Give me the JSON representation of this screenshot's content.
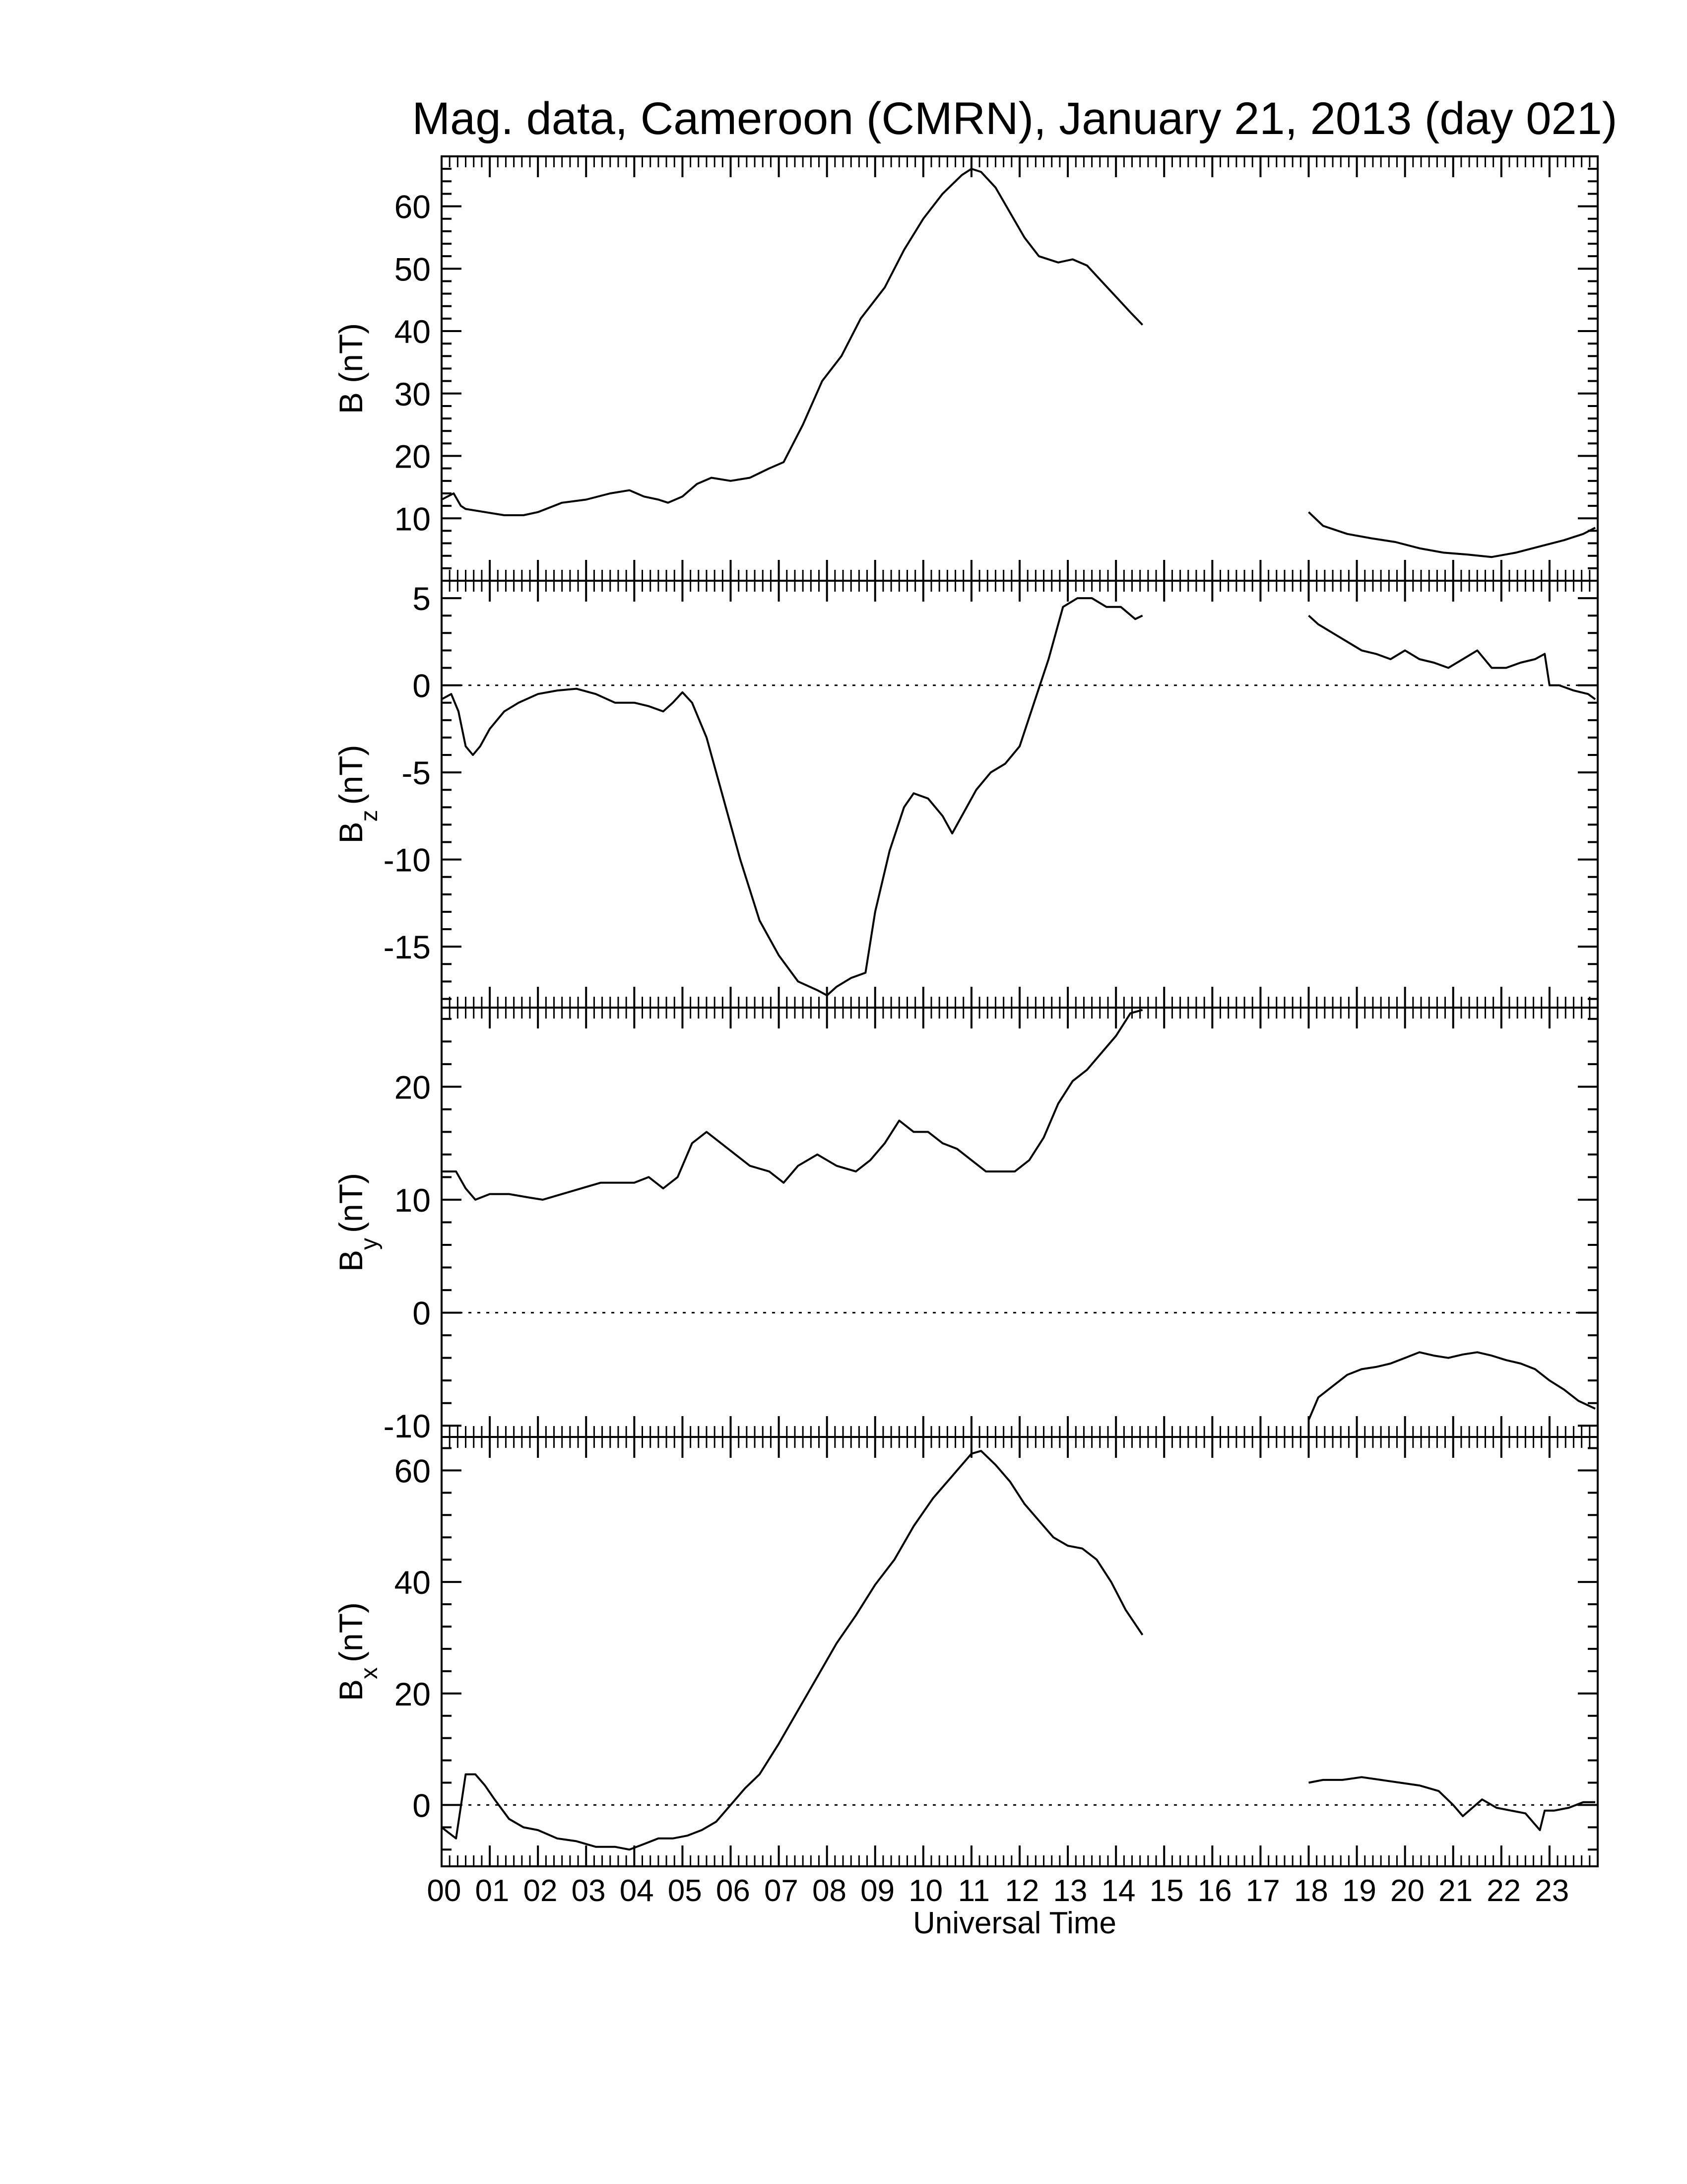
{
  "figure": {
    "title": "Mag. data, Cameroon (CMRN), January 21, 2013 (day 021)",
    "xlabel": "Universal Time"
  },
  "chart_data": [
    {
      "type": "line",
      "panel": "B",
      "ylabel": "B (nT)",
      "ylabel_sub": "",
      "ylim": [
        0,
        68
      ],
      "yticks": [
        10,
        20,
        30,
        40,
        50,
        60
      ],
      "ytick_labels": [
        "10",
        "20",
        "30",
        "40",
        "50",
        "60"
      ],
      "zero_line": false,
      "segments": [
        {
          "x": [
            0,
            0.25,
            0.4,
            0.5,
            0.9,
            1.3,
            1.7,
            2.0,
            2.5,
            3.0,
            3.5,
            3.9,
            4.2,
            4.5,
            4.7,
            5.0,
            5.3,
            5.6,
            6.0,
            6.4,
            6.8,
            7.1,
            7.5,
            7.9,
            8.3,
            8.7,
            9.2,
            9.6,
            10.0,
            10.4,
            10.8,
            11.0,
            11.2,
            11.5,
            11.8,
            12.1,
            12.4,
            12.8,
            13.1,
            13.4,
            13.7,
            14.0,
            14.3,
            14.55
          ],
          "y": [
            13,
            14,
            12,
            11.5,
            11,
            10.5,
            10.5,
            11,
            12.5,
            13,
            14,
            14.5,
            13.5,
            13,
            12.5,
            13.5,
            15.5,
            16.5,
            16,
            16.5,
            18,
            19,
            25,
            32,
            36,
            42,
            47,
            53,
            58,
            62,
            65,
            66,
            65.5,
            63,
            59,
            55,
            52,
            51,
            51.5,
            50.5,
            48,
            45.5,
            43,
            41
          ]
        },
        {
          "x": [
            18.0,
            18.3,
            18.8,
            19.3,
            19.8,
            20.3,
            20.8,
            21.3,
            21.8,
            22.3,
            22.8,
            23.3,
            23.7,
            23.95
          ],
          "y": [
            11,
            8.8,
            7.5,
            6.8,
            6.2,
            5.2,
            4.5,
            4.2,
            3.8,
            4.5,
            5.5,
            6.5,
            7.5,
            8.5
          ]
        }
      ]
    },
    {
      "type": "line",
      "panel": "Bz",
      "ylabel": "B",
      "ylabel_sub": "z",
      "ylabel_unit": "(nT)",
      "ylim": [
        -18.5,
        6
      ],
      "yticks": [
        5,
        0,
        -5,
        -10,
        -15
      ],
      "ytick_labels": [
        "5",
        "0",
        "-5",
        "-10",
        "-15"
      ],
      "zero_line": true,
      "segments": [
        {
          "x": [
            0,
            0.2,
            0.35,
            0.5,
            0.65,
            0.8,
            1.0,
            1.3,
            1.6,
            2.0,
            2.4,
            2.8,
            3.2,
            3.6,
            4.0,
            4.3,
            4.6,
            4.8,
            5.0,
            5.2,
            5.5,
            5.8,
            6.2,
            6.6,
            7.0,
            7.4,
            7.8,
            8.0,
            8.2,
            8.5,
            8.8,
            9.0,
            9.3,
            9.6,
            9.8,
            10.1,
            10.4,
            10.6,
            10.8,
            11.1,
            11.4,
            11.7,
            12.0,
            12.3,
            12.6,
            12.9,
            13.2,
            13.5,
            13.8,
            14.1,
            14.4,
            14.55
          ],
          "y": [
            -0.8,
            -0.5,
            -1.5,
            -3.5,
            -4,
            -3.5,
            -2.5,
            -1.5,
            -1,
            -0.5,
            -0.3,
            -0.2,
            -0.5,
            -1,
            -1,
            -1.2,
            -1.5,
            -1,
            -0.4,
            -1,
            -3,
            -6,
            -10,
            -13.5,
            -15.5,
            -17,
            -17.5,
            -17.8,
            -17.3,
            -16.8,
            -16.5,
            -13,
            -9.5,
            -7,
            -6.2,
            -6.5,
            -7.5,
            -8.5,
            -7.5,
            -6,
            -5,
            -4.5,
            -3.5,
            -1,
            1.5,
            4.5,
            5,
            5,
            4.5,
            4.5,
            3.8,
            4
          ]
        },
        {
          "x": [
            18.0,
            18.2,
            18.5,
            18.8,
            19.1,
            19.4,
            19.7,
            20.0,
            20.3,
            20.6,
            20.9,
            21.2,
            21.5,
            21.8,
            22.1,
            22.4,
            22.7,
            22.9,
            23.0,
            23.2,
            23.5,
            23.8,
            23.95
          ],
          "y": [
            4,
            3.5,
            3,
            2.5,
            2,
            1.8,
            1.5,
            2,
            1.5,
            1.3,
            1,
            1.5,
            2,
            1,
            1,
            1.3,
            1.5,
            1.8,
            0,
            0,
            -0.3,
            -0.5,
            -0.8
          ]
        }
      ]
    },
    {
      "type": "line",
      "panel": "By",
      "ylabel": "B",
      "ylabel_sub": "y",
      "ylabel_unit": "(nT)",
      "ylim": [
        -11,
        27
      ],
      "yticks": [
        20,
        10,
        0,
        -10
      ],
      "ytick_labels": [
        "20",
        "10",
        "0",
        "-10"
      ],
      "zero_line": true,
      "segments": [
        {
          "x": [
            0,
            0.3,
            0.5,
            0.7,
            1.0,
            1.4,
            1.8,
            2.1,
            2.5,
            2.9,
            3.3,
            3.7,
            4.0,
            4.3,
            4.6,
            4.9,
            5.2,
            5.5,
            5.8,
            6.1,
            6.4,
            6.8,
            7.1,
            7.4,
            7.8,
            8.2,
            8.6,
            8.9,
            9.2,
            9.5,
            9.8,
            10.1,
            10.4,
            10.7,
            11.0,
            11.3,
            11.6,
            11.9,
            12.2,
            12.5,
            12.8,
            13.1,
            13.4,
            13.7,
            14.0,
            14.3,
            14.55
          ],
          "y": [
            12.5,
            12.5,
            11,
            10,
            10.5,
            10.5,
            10.2,
            10,
            10.5,
            11,
            11.5,
            11.5,
            11.5,
            12,
            11,
            12,
            15,
            16,
            15,
            14,
            13,
            12.5,
            11.5,
            13,
            14,
            13,
            12.5,
            13.5,
            15,
            17,
            16,
            16,
            15,
            14.5,
            13.5,
            12.5,
            12.5,
            12.5,
            13.5,
            15.5,
            18.5,
            20.5,
            21.5,
            23,
            24.5,
            26.5,
            26.8
          ]
        },
        {
          "x": [
            18.0,
            18.2,
            18.5,
            18.8,
            19.1,
            19.4,
            19.7,
            20.0,
            20.3,
            20.6,
            20.9,
            21.2,
            21.5,
            21.8,
            22.1,
            22.4,
            22.7,
            23.0,
            23.3,
            23.6,
            23.95
          ],
          "y": [
            -9.5,
            -7.5,
            -6.5,
            -5.5,
            -5,
            -4.8,
            -4.5,
            -4,
            -3.5,
            -3.8,
            -4,
            -3.7,
            -3.5,
            -3.8,
            -4.2,
            -4.5,
            -5,
            -6,
            -6.8,
            -7.8,
            -8.5
          ]
        }
      ]
    },
    {
      "type": "line",
      "panel": "Bx",
      "ylabel": "B",
      "ylabel_sub": "x",
      "ylabel_unit": "(nT)",
      "ylim": [
        -11,
        66
      ],
      "yticks": [
        60,
        40,
        20,
        0
      ],
      "ytick_labels": [
        "60",
        "40",
        "20",
        "0"
      ],
      "zero_line": true,
      "segments": [
        {
          "x": [
            0,
            0.3,
            0.5,
            0.7,
            0.9,
            1.1,
            1.4,
            1.7,
            2.0,
            2.4,
            2.8,
            3.2,
            3.6,
            3.9,
            4.2,
            4.5,
            4.8,
            5.1,
            5.4,
            5.7,
            6.0,
            6.3,
            6.6,
            7.0,
            7.4,
            7.8,
            8.2,
            8.6,
            9.0,
            9.4,
            9.8,
            10.2,
            10.5,
            10.8,
            11.0,
            11.2,
            11.5,
            11.8,
            12.1,
            12.4,
            12.7,
            13.0,
            13.3,
            13.6,
            13.9,
            14.2,
            14.55
          ],
          "y": [
            -4,
            -6,
            5.5,
            5.5,
            3.5,
            1,
            -2.5,
            -4,
            -4.5,
            -6,
            -6.5,
            -7.5,
            -7.5,
            -8,
            -7,
            -6,
            -6,
            -5.5,
            -4.5,
            -3,
            0,
            3,
            5.5,
            11,
            17,
            23,
            29,
            34,
            39.5,
            44,
            50,
            55,
            58,
            61,
            63,
            63.5,
            61,
            58,
            54,
            51,
            48,
            46.5,
            46,
            44,
            40,
            35,
            30.5
          ]
        },
        {
          "x": [
            18.0,
            18.3,
            18.7,
            19.1,
            19.5,
            19.9,
            20.3,
            20.7,
            21.0,
            21.2,
            21.4,
            21.6,
            21.9,
            22.2,
            22.5,
            22.8,
            22.9,
            23.1,
            23.4,
            23.7,
            23.95
          ],
          "y": [
            4,
            4.5,
            4.5,
            5,
            4.5,
            4,
            3.5,
            2.5,
            0,
            -2,
            -0.5,
            1,
            -0.5,
            -1,
            -1.5,
            -4.5,
            -1,
            -1,
            -0.5,
            0.5,
            0.5
          ]
        }
      ]
    }
  ],
  "xaxis": {
    "xlim": [
      0,
      24
    ],
    "tick_labels": [
      "00",
      "01",
      "02",
      "03",
      "04",
      "05",
      "06",
      "07",
      "08",
      "09",
      "10",
      "11",
      "12",
      "13",
      "14",
      "15",
      "16",
      "17",
      "18",
      "19",
      "20",
      "21",
      "22",
      "23"
    ]
  }
}
